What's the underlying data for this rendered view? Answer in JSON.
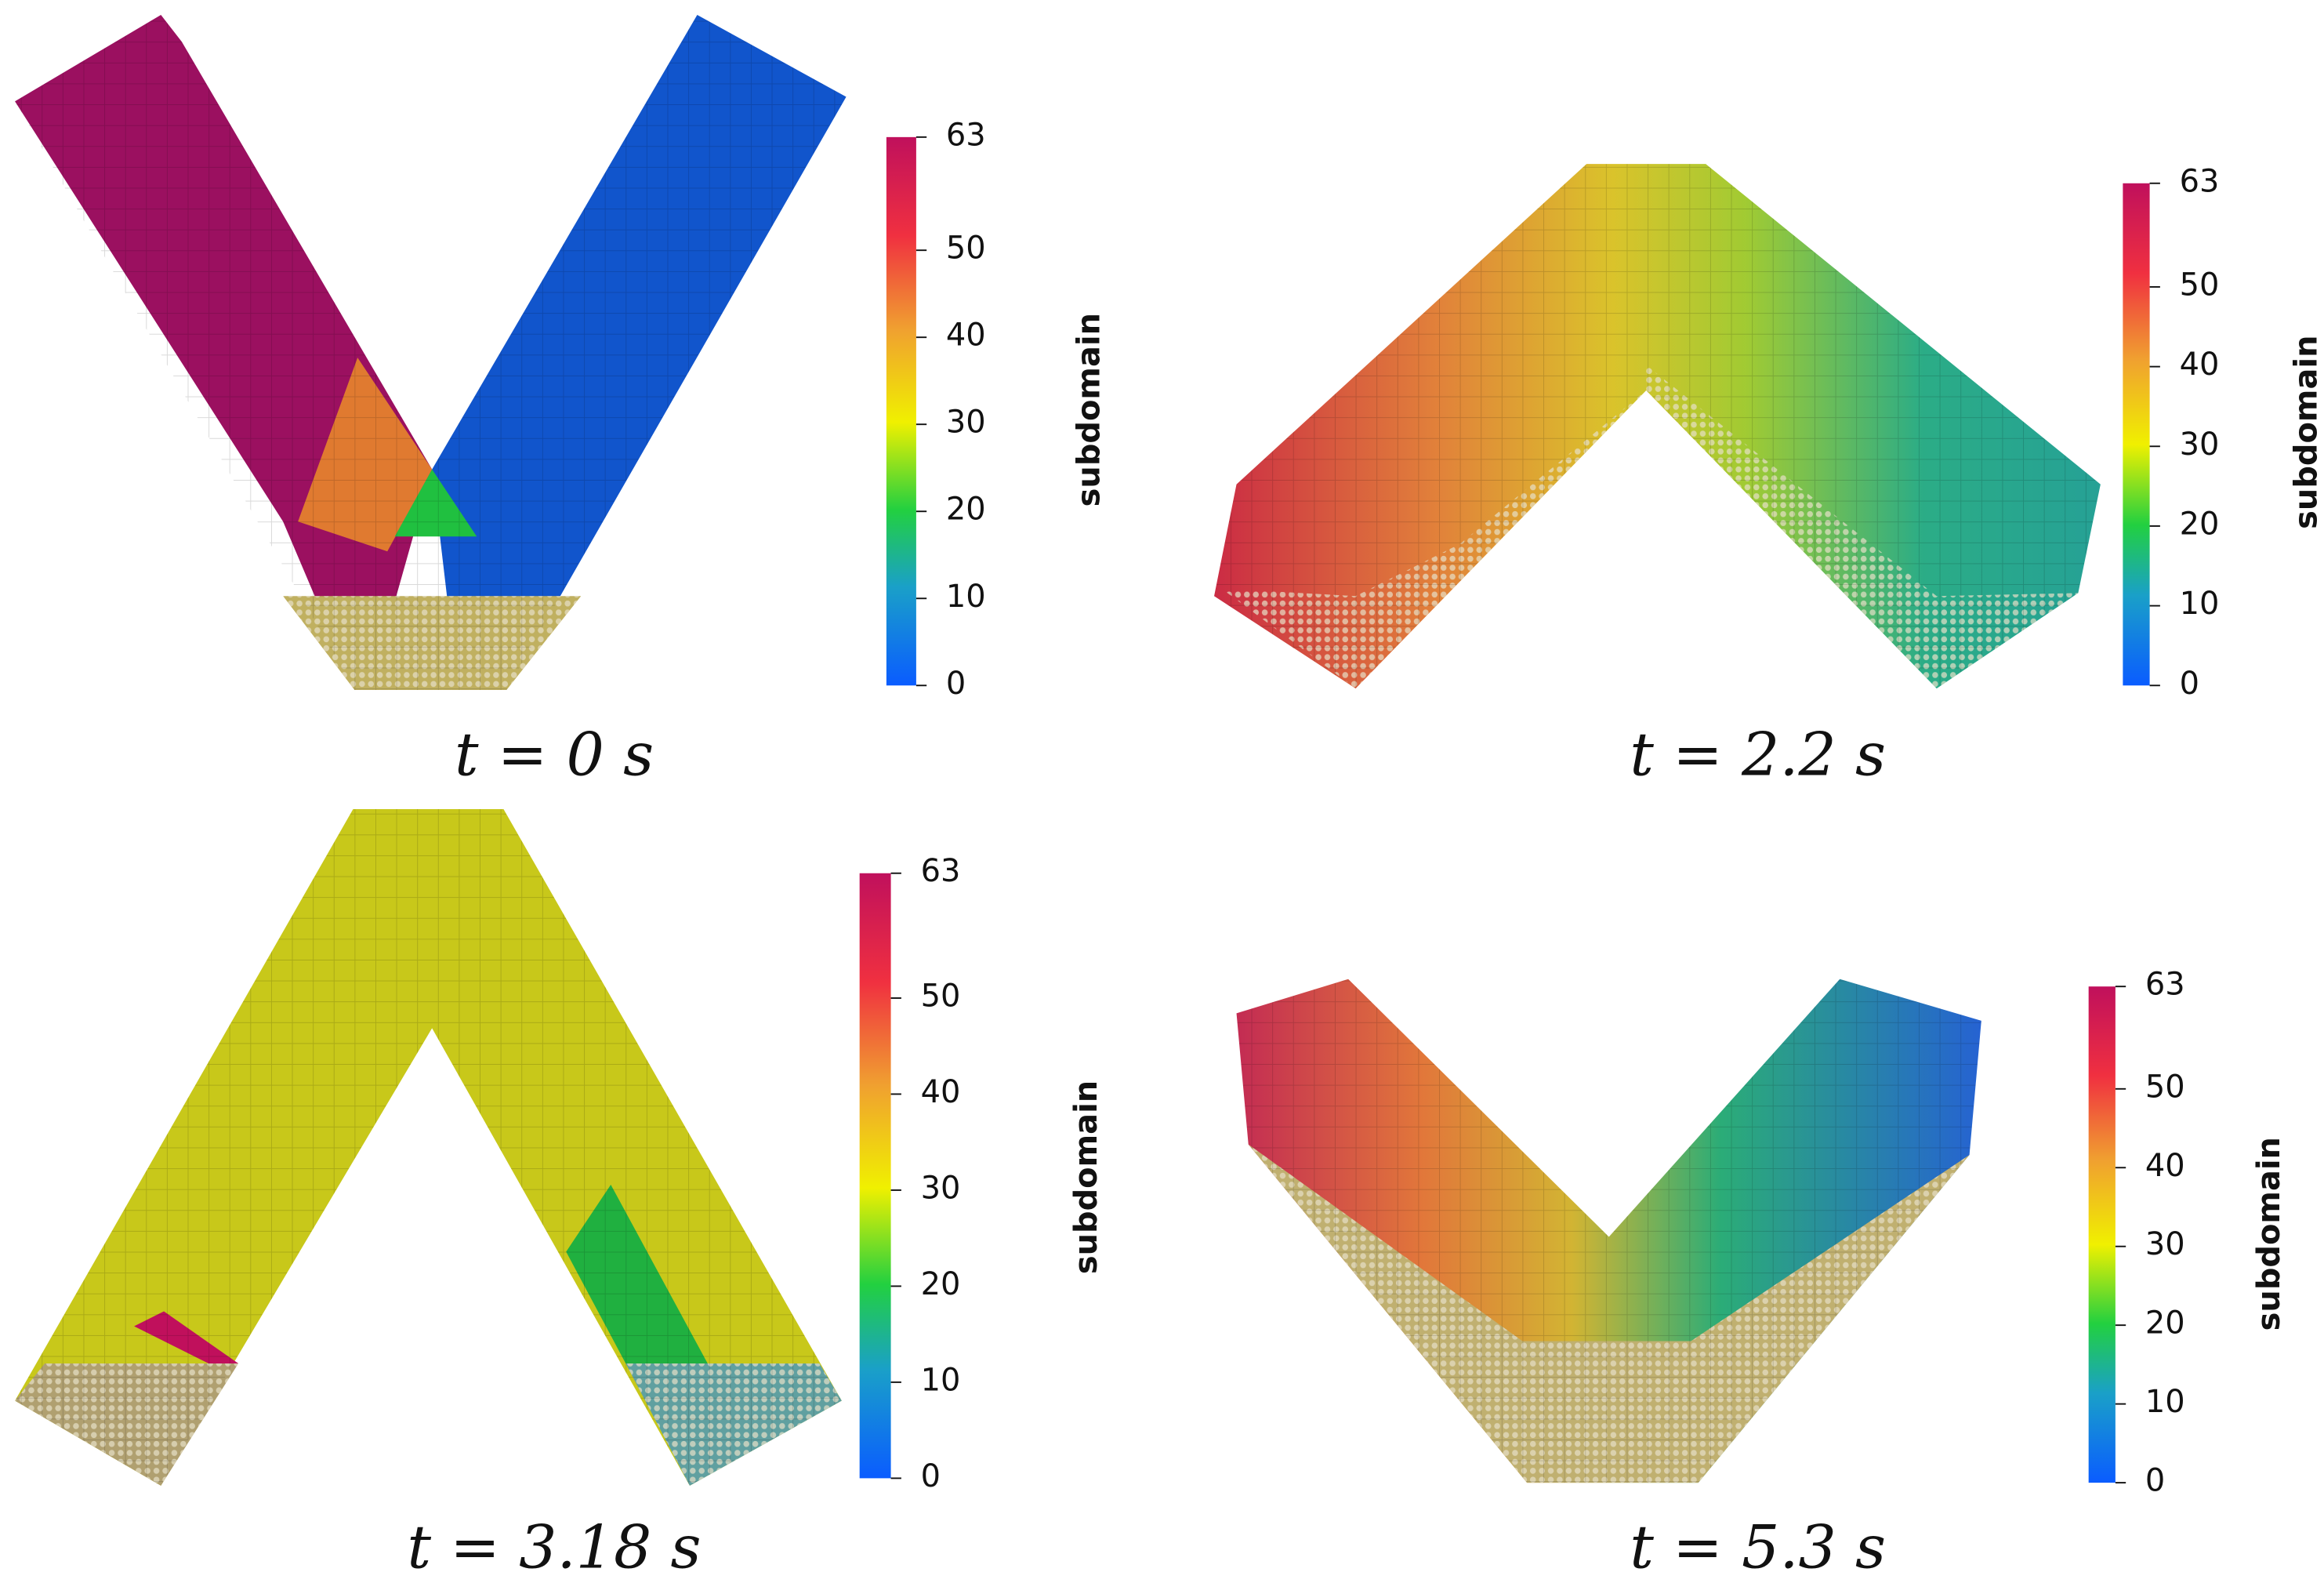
{
  "panels": [
    {
      "caption": "t = 0 s",
      "colorbar": {
        "label": "subdomain",
        "range": [
          0,
          63
        ],
        "ticks": [
          0,
          10,
          20,
          30,
          40,
          50,
          63
        ]
      }
    },
    {
      "caption": "t = 2.2 s",
      "colorbar": {
        "label": "subdomain",
        "range": [
          0,
          63
        ],
        "ticks": [
          0,
          10,
          20,
          30,
          40,
          50,
          63
        ]
      }
    },
    {
      "caption": "t = 3.18 s",
      "colorbar": {
        "label": "subdomain",
        "range": [
          0,
          63
        ],
        "ticks": [
          0,
          10,
          20,
          30,
          40,
          50,
          63
        ]
      }
    },
    {
      "caption": "t = 5.3 s",
      "colorbar": {
        "label": "subdomain",
        "range": [
          0,
          63
        ],
        "ticks": [
          0,
          10,
          20,
          30,
          40,
          50,
          63
        ]
      }
    }
  ]
}
